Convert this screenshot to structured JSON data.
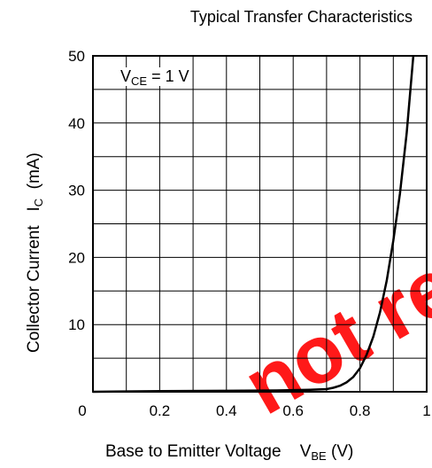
{
  "chart_data": {
    "type": "line",
    "title": "Typical Transfer Characteristics",
    "xlabel": {
      "text": "Base to Emitter Voltage",
      "symbol": "V",
      "sub": "BE",
      "unit": "(V)"
    },
    "ylabel": {
      "text": "Collector Current",
      "symbol": "I",
      "sub": "C",
      "unit": "(mA)"
    },
    "annotation": {
      "symbol": "V",
      "sub": "CE",
      "text": " = 1 V"
    },
    "xlim": [
      0,
      1
    ],
    "ylim": [
      0,
      50
    ],
    "xticks": [
      0,
      0.1,
      0.2,
      0.3,
      0.4,
      0.5,
      0.6,
      0.7,
      0.8,
      0.9,
      1.0
    ],
    "xtick_labels": [
      "0",
      "",
      "0.2",
      "",
      "0.4",
      "",
      "0.6",
      "",
      "0.8",
      "",
      "1"
    ],
    "yticks": [
      0,
      5,
      10,
      15,
      20,
      25,
      30,
      35,
      40,
      45,
      50
    ],
    "ytick_labels": [
      "",
      "",
      "10",
      "",
      "20",
      "",
      "30",
      "",
      "40",
      "",
      "50"
    ],
    "grid": true,
    "series": [
      {
        "x": [
          0,
          0.2,
          0.4,
          0.55,
          0.65,
          0.7,
          0.72,
          0.74,
          0.76,
          0.78,
          0.8,
          0.82,
          0.84,
          0.86,
          0.88,
          0.9,
          0.92,
          0.94,
          0.96
        ],
        "y": [
          0,
          0.1,
          0.15,
          0.2,
          0.3,
          0.4,
          0.6,
          0.9,
          1.4,
          2.2,
          3.5,
          5.5,
          8.2,
          11.8,
          16.5,
          22.5,
          29.5,
          38.5,
          50
        ],
        "color": "#000000"
      }
    ],
    "watermark": {
      "text": "not rec",
      "color": "#ff0000"
    }
  }
}
